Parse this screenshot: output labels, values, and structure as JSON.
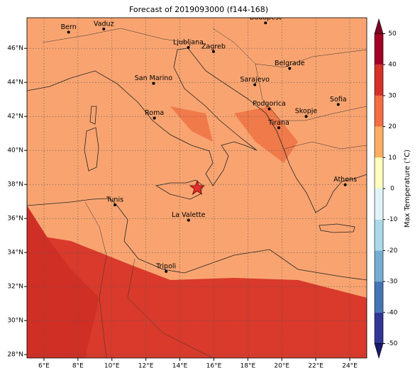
{
  "title": "Forecast of 2019093000 (f144-168)",
  "map": {
    "lonlim": [
      5,
      25
    ],
    "latlim": [
      27.8,
      47.8
    ],
    "lon_ticks": [
      {
        "value": 6,
        "label": "6°E"
      },
      {
        "value": 8,
        "label": "8°E"
      },
      {
        "value": 10,
        "label": "10°E"
      },
      {
        "value": 12,
        "label": "12°E"
      },
      {
        "value": 14,
        "label": "14°E"
      },
      {
        "value": 16,
        "label": "16°E"
      },
      {
        "value": 18,
        "label": "18°E"
      },
      {
        "value": 20,
        "label": "20°E"
      },
      {
        "value": 22,
        "label": "22°E"
      },
      {
        "value": 24,
        "label": "24°E"
      }
    ],
    "lat_ticks": [
      {
        "value": 28,
        "label": "28°N"
      },
      {
        "value": 30,
        "label": "30°N"
      },
      {
        "value": 32,
        "label": "32°N"
      },
      {
        "value": 34,
        "label": "34°N"
      },
      {
        "value": 36,
        "label": "36°N"
      },
      {
        "value": 38,
        "label": "38°N"
      },
      {
        "value": 40,
        "label": "40°N"
      },
      {
        "value": 42,
        "label": "42°N"
      },
      {
        "value": 44,
        "label": "44°N"
      },
      {
        "value": 46,
        "label": "46°N"
      }
    ],
    "cities": [
      {
        "name": "Bern",
        "lon": 7.45,
        "lat": 46.95
      },
      {
        "name": "Vaduz",
        "lon": 9.52,
        "lat": 47.14
      },
      {
        "name": "Budapest",
        "lon": 19.04,
        "lat": 47.5
      },
      {
        "name": "Ljubljana",
        "lon": 14.5,
        "lat": 46.05
      },
      {
        "name": "Zagreb",
        "lon": 15.98,
        "lat": 45.81
      },
      {
        "name": "Belgrade",
        "lon": 20.46,
        "lat": 44.82
      },
      {
        "name": "San Marino",
        "lon": 12.45,
        "lat": 43.94
      },
      {
        "name": "Sarajevo",
        "lon": 18.41,
        "lat": 43.86
      },
      {
        "name": "Sofia",
        "lon": 23.32,
        "lat": 42.7
      },
      {
        "name": "Podgorica",
        "lon": 19.26,
        "lat": 42.44
      },
      {
        "name": "Skopje",
        "lon": 21.43,
        "lat": 42.0
      },
      {
        "name": "Roma",
        "lon": 12.5,
        "lat": 41.9
      },
      {
        "name": "Tirana",
        "lon": 19.82,
        "lat": 41.33
      },
      {
        "name": "Athens",
        "lon": 23.73,
        "lat": 37.98
      },
      {
        "name": "Tunis",
        "lon": 10.18,
        "lat": 36.8
      },
      {
        "name": "La Valette",
        "lon": 14.51,
        "lat": 35.9
      },
      {
        "name": "Tripoli",
        "lon": 13.19,
        "lat": 32.89
      }
    ]
  },
  "colorbar": {
    "label": "Max Temperature (°C)",
    "ticks": [
      -50,
      -40,
      -30,
      -20,
      -10,
      0,
      10,
      20,
      30,
      40,
      50
    ],
    "colors": [
      "#313695",
      "#4575b4",
      "#74add1",
      "#abd9e9",
      "#e0f3f8",
      "#ffffbf",
      "#fdae61",
      "#f46d43",
      "#d73027",
      "#a50026"
    ]
  }
}
